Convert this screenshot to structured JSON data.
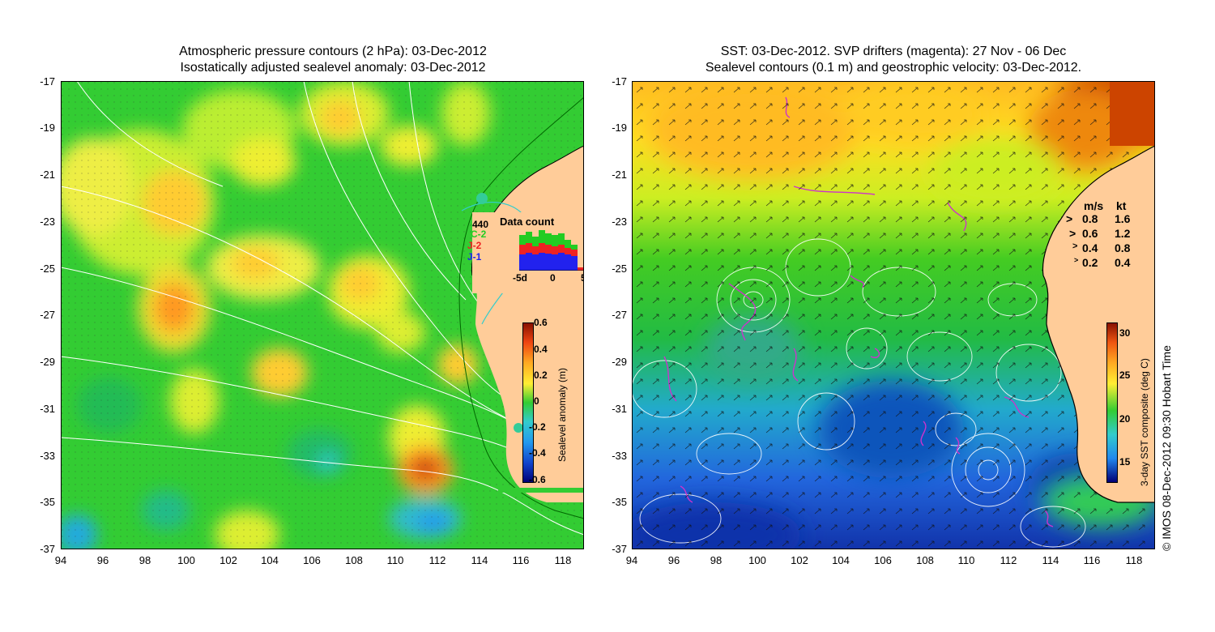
{
  "left_panel": {
    "title_line1": "Atmospheric pressure contours (2 hPa): 03-Dec-2012",
    "title_line2": "Isostatically adjusted sealevel anomaly: 03-Dec-2012",
    "colorbar": {
      "label": "Sealevel anomaly (m)",
      "ticks": [
        "0.6",
        "0.4",
        "0.2",
        "0",
        "-0.2",
        "-0.4",
        "-0.6"
      ]
    },
    "inset": {
      "title": "Data count",
      "count": "440",
      "sat_c2": "C-2",
      "sat_j2": "J-2",
      "sat_j1": "J-1",
      "xticks": [
        "-5d",
        "0",
        "5"
      ],
      "colors": {
        "c2": "#22cc22",
        "j2": "#ee2222",
        "j1": "#2222ee"
      }
    }
  },
  "right_panel": {
    "title_line1": "SST: 03-Dec-2012. SVP drifters (magenta): 27 Nov - 06 Dec",
    "title_line2": "Sealevel contours (0.1 m) and geostrophic velocity: 03-Dec-2012.",
    "colorbar": {
      "label": "3-day SST composite (deg C)",
      "ticks": [
        "30",
        "25",
        "20",
        "15"
      ]
    },
    "velocity_legend": {
      "header_ms": "m/s",
      "header_kt": "kt",
      "rows": [
        {
          "ms": "0.8",
          "kt": "1.6"
        },
        {
          "ms": "0.6",
          "kt": "1.2"
        },
        {
          "ms": "0.4",
          "kt": "0.8"
        },
        {
          "ms": "0.2",
          "kt": "0.4"
        }
      ]
    }
  },
  "axes": {
    "y_ticks": [
      "-17",
      "-19",
      "-21",
      "-23",
      "-25",
      "-27",
      "-29",
      "-31",
      "-33",
      "-35",
      "-37"
    ],
    "x_ticks": [
      "94",
      "96",
      "98",
      "100",
      "102",
      "104",
      "106",
      "108",
      "110",
      "112",
      "114",
      "116",
      "118"
    ]
  },
  "copyright": "© IMOS 08-Dec-2012 09:30 Hobart Time",
  "colors": {
    "land": "#ffcc99",
    "drifters": "#cc33cc",
    "contours": "#ffffff"
  }
}
